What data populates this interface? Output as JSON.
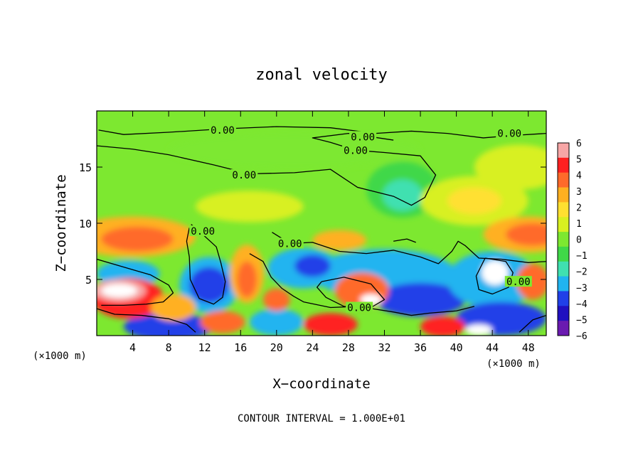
{
  "chart_data": {
    "type": "heatmap",
    "title": "zonal velocity",
    "xlabel": "X−coordinate",
    "ylabel": "Z−coordinate",
    "x_unit_left": "(×1000 m)",
    "x_unit_right": "(×1000 m)",
    "footer": "CONTOUR INTERVAL = 1.000E+01",
    "xlim": [
      0,
      50
    ],
    "ylim": [
      0,
      20
    ],
    "x_ticks": [
      4,
      8,
      12,
      16,
      20,
      24,
      28,
      32,
      36,
      40,
      44,
      48
    ],
    "y_ticks": [
      5,
      10,
      15
    ],
    "colorbar": {
      "min": -6,
      "max": 6,
      "labels": [
        "6",
        "5",
        "4",
        "3",
        "2",
        "1",
        "0",
        "−1",
        "−2",
        "−3",
        "−4",
        "−5",
        "−6"
      ],
      "colors": [
        "#f7a6a6",
        "#ff2020",
        "#ff6a2a",
        "#ffb020",
        "#ffe030",
        "#d8f020",
        "#7de830",
        "#40d848",
        "#40e0b0",
        "#20b4f0",
        "#2040e8",
        "#2010c0",
        "#6a1ab0"
      ]
    },
    "contour_labels": [
      {
        "text": "0.00",
        "x": 14.0,
        "z": 18.3
      },
      {
        "text": "0.00",
        "x": 29.6,
        "z": 17.7
      },
      {
        "text": "0.00",
        "x": 45.9,
        "z": 18.0
      },
      {
        "text": "0.00",
        "x": 28.8,
        "z": 16.5
      },
      {
        "text": "0.00",
        "x": 16.4,
        "z": 14.3
      },
      {
        "text": "0.00",
        "x": 11.8,
        "z": 9.3
      },
      {
        "text": "0.00",
        "x": 21.5,
        "z": 8.2
      },
      {
        "text": "0.00",
        "x": 46.9,
        "z": 4.8
      },
      {
        "text": "0.00",
        "x": 29.2,
        "z": 2.5
      }
    ]
  }
}
